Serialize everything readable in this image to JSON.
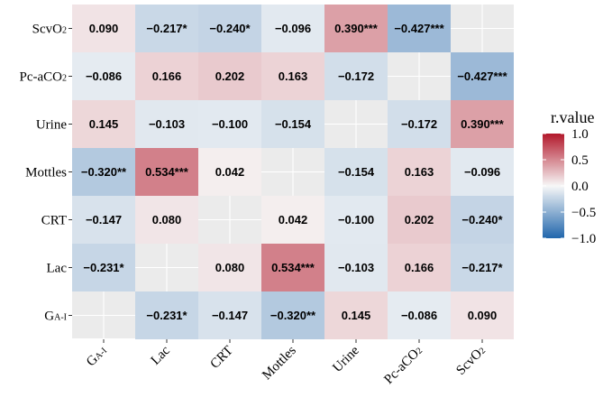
{
  "chart_data": {
    "type": "heatmap",
    "x_labels": [
      {
        "base": "G",
        "sub": "A-I"
      },
      {
        "base": "Lac",
        "sub": ""
      },
      {
        "base": "CRT",
        "sub": ""
      },
      {
        "base": "Mottles",
        "sub": ""
      },
      {
        "base": "Urine",
        "sub": ""
      },
      {
        "base": "Pc-aCO",
        "sub": "2"
      },
      {
        "base": "ScvO",
        "sub": "2"
      }
    ],
    "y_labels": [
      {
        "base": "ScvO",
        "sub": "2"
      },
      {
        "base": "Pc-aCO",
        "sub": "2"
      },
      {
        "base": "Urine",
        "sub": ""
      },
      {
        "base": "Mottles",
        "sub": ""
      },
      {
        "base": "CRT",
        "sub": ""
      },
      {
        "base": "Lac",
        "sub": ""
      },
      {
        "base": "G",
        "sub": "A-I"
      }
    ],
    "values": [
      [
        0.09,
        -0.217,
        -0.24,
        -0.096,
        0.39,
        -0.427,
        null
      ],
      [
        -0.086,
        0.166,
        0.202,
        0.163,
        -0.172,
        null,
        -0.427
      ],
      [
        0.145,
        -0.103,
        -0.1,
        -0.154,
        null,
        -0.172,
        0.39
      ],
      [
        -0.32,
        0.534,
        0.042,
        null,
        -0.154,
        0.163,
        -0.096
      ],
      [
        -0.147,
        0.08,
        null,
        0.042,
        -0.1,
        0.202,
        -0.24
      ],
      [
        -0.231,
        null,
        0.08,
        0.534,
        -0.103,
        0.166,
        -0.217
      ],
      [
        null,
        -0.231,
        -0.147,
        -0.32,
        0.145,
        -0.086,
        0.09
      ]
    ],
    "labels": [
      [
        "0.090",
        "−0.217*",
        "−0.240*",
        "−0.096",
        "0.390***",
        "−0.427***",
        ""
      ],
      [
        "−0.086",
        "0.166",
        "0.202",
        "0.163",
        "−0.172",
        "",
        "−0.427***"
      ],
      [
        "0.145",
        "−0.103",
        "−0.100",
        "−0.154",
        "",
        "−0.172",
        "0.390***"
      ],
      [
        "−0.320**",
        "0.534***",
        "0.042",
        "",
        "−0.154",
        "0.163",
        "−0.096"
      ],
      [
        "−0.147",
        "0.080",
        "",
        "0.042",
        "−0.100",
        "0.202",
        "−0.240*"
      ],
      [
        "−0.231*",
        "",
        "0.080",
        "0.534***",
        "−0.103",
        "0.166",
        "−0.217*"
      ],
      [
        "",
        "−0.231*",
        "−0.147",
        "−0.320**",
        "0.145",
        "−0.086",
        "0.090"
      ]
    ],
    "legend": {
      "title": "r.value",
      "ticks": [
        {
          "value": 1.0,
          "label": "1.0"
        },
        {
          "value": 0.5,
          "label": "0.5"
        },
        {
          "value": 0.0,
          "label": "0.0"
        },
        {
          "value": -0.5,
          "label": "−0.5"
        },
        {
          "value": -1.0,
          "label": "−1.0"
        }
      ],
      "range": [
        -1,
        1
      ],
      "placement": "right"
    },
    "colors": {
      "panel_bg": "#ebebeb",
      "grid": "#ffffff",
      "scale_low": "#2166ac",
      "scale_mid": "#f7f7f7",
      "scale_high": "#b2182b"
    }
  }
}
